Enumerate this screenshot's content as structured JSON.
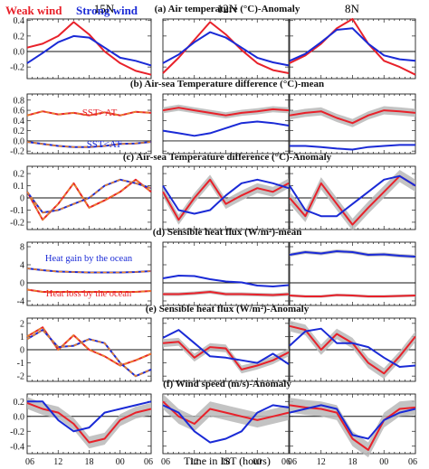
{
  "figure": {
    "legend": [
      {
        "label": "Weak wind",
        "color": "#e8212a"
      },
      {
        "label": "Strong wind",
        "color": "#1a2ad6"
      }
    ],
    "column_titles": [
      "15N",
      "12N",
      "8N"
    ],
    "xlabel": "Time in IST (hours)",
    "xticks": [
      "06",
      "12",
      "18",
      "00",
      "06"
    ]
  },
  "chart_data": [
    {
      "type": "line",
      "row": 0,
      "title": "(a) Air temperature (°C)-Anomaly",
      "ylim": [
        -0.35,
        0.42
      ],
      "yticks": [
        -0.2,
        0.0,
        0.2,
        0.4
      ],
      "ytick_labels": [
        "-0.2",
        "0.0",
        "0.2",
        "0.4"
      ],
      "x_hours": [
        6,
        9,
        12,
        15,
        18,
        21,
        24,
        27,
        30
      ],
      "zero_line": true,
      "dashed": false,
      "panels": [
        {
          "column": "15N",
          "series": [
            {
              "name": "Weak wind",
              "values": [
                0.05,
                0.1,
                0.2,
                0.38,
                0.22,
                0.0,
                -0.15,
                -0.25,
                -0.3
              ],
              "band": 0.0
            },
            {
              "name": "Strong wind",
              "values": [
                -0.15,
                -0.02,
                0.12,
                0.2,
                0.18,
                0.05,
                -0.08,
                -0.12,
                -0.18
              ]
            }
          ]
        },
        {
          "column": "12N",
          "series": [
            {
              "name": "Weak wind",
              "values": [
                -0.28,
                -0.08,
                0.15,
                0.38,
                0.22,
                0.02,
                -0.15,
                -0.24,
                -0.28
              ],
              "band": 0.0
            },
            {
              "name": "Strong wind",
              "values": [
                -0.15,
                -0.04,
                0.12,
                0.25,
                0.18,
                0.05,
                -0.08,
                -0.14,
                -0.18
              ]
            }
          ]
        },
        {
          "column": "8N",
          "series": [
            {
              "name": "Weak wind",
              "values": [
                -0.15,
                -0.05,
                0.1,
                0.3,
                0.42,
                0.1,
                -0.12,
                -0.2,
                -0.3
              ],
              "band": 0.0
            },
            {
              "name": "Strong wind",
              "values": [
                -0.12,
                -0.03,
                0.12,
                0.28,
                0.3,
                0.1,
                -0.05,
                -0.1,
                -0.12
              ]
            }
          ]
        }
      ]
    },
    {
      "type": "line",
      "row": 1,
      "title": "(b) Air-sea Temperature difference (°C)-mean",
      "ylim": [
        -0.25,
        0.92
      ],
      "yticks": [
        -0.2,
        0.0,
        0.2,
        0.4,
        0.6,
        0.8
      ],
      "ytick_labels": [
        "-0.2",
        "0.0",
        "0.2",
        "0.4",
        "0.6",
        "0.8"
      ],
      "x_hours": [
        6,
        9,
        12,
        15,
        18,
        21,
        24,
        27,
        30
      ],
      "zero_line": true,
      "dashed": true,
      "annotations": [
        {
          "text": "SST>AT",
          "color": "#e8212a"
        },
        {
          "text": "SST<AT",
          "color": "#1a2ad6"
        }
      ],
      "panels": [
        {
          "column": "15N",
          "series": [
            {
              "name": "Weak wind",
              "values": [
                0.5,
                0.58,
                0.52,
                0.55,
                0.5,
                0.56,
                0.5,
                0.57,
                0.55
              ],
              "band": 0.0
            },
            {
              "name": "Strong wind",
              "values": [
                -0.02,
                -0.06,
                -0.1,
                -0.12,
                -0.12,
                -0.1,
                -0.06,
                -0.05,
                -0.02
              ]
            }
          ]
        },
        {
          "column": "12N",
          "series": [
            {
              "name": "Weak wind",
              "values": [
                0.6,
                0.65,
                0.6,
                0.55,
                0.5,
                0.55,
                0.58,
                0.62,
                0.6
              ],
              "band": 0.06
            },
            {
              "name": "Strong wind",
              "values": [
                0.2,
                0.15,
                0.1,
                0.15,
                0.25,
                0.35,
                0.38,
                0.35,
                0.3
              ]
            }
          ]
        },
        {
          "column": "8N",
          "series": [
            {
              "name": "Weak wind",
              "values": [
                0.5,
                0.55,
                0.58,
                0.45,
                0.35,
                0.5,
                0.6,
                0.58,
                0.55
              ],
              "band": 0.08
            },
            {
              "name": "Strong wind",
              "values": [
                -0.1,
                -0.1,
                -0.12,
                -0.15,
                -0.17,
                -0.12,
                -0.1,
                -0.08,
                -0.08
              ]
            }
          ]
        }
      ]
    },
    {
      "type": "line",
      "row": 2,
      "title": "(c) Air-sea Temperature difference (°C)-Anomaly",
      "ylim": [
        -0.26,
        0.26
      ],
      "yticks": [
        -0.2,
        -0.1,
        0.0,
        0.1,
        0.2
      ],
      "ytick_labels": [
        "-0.2",
        "-0.1",
        "0",
        "0.1",
        "0.2"
      ],
      "x_hours": [
        6,
        9,
        12,
        15,
        18,
        21,
        24,
        27,
        30
      ],
      "zero_line": true,
      "dashed": true,
      "panels": [
        {
          "column": "15N",
          "series": [
            {
              "name": "Weak wind",
              "values": [
                0.05,
                -0.18,
                -0.05,
                0.12,
                -0.08,
                -0.02,
                0.05,
                0.15,
                0.05
              ],
              "band": 0.0
            },
            {
              "name": "Strong wind",
              "values": [
                0.05,
                -0.12,
                -0.1,
                -0.05,
                0.0,
                0.1,
                0.15,
                0.12,
                0.08
              ]
            }
          ]
        },
        {
          "column": "12N",
          "series": [
            {
              "name": "Weak wind",
              "values": [
                0.05,
                -0.18,
                0.0,
                0.15,
                -0.05,
                0.02,
                0.08,
                0.05,
                0.12
              ],
              "band": 0.04
            },
            {
              "name": "Strong wind",
              "values": [
                0.1,
                -0.1,
                -0.13,
                -0.1,
                0.02,
                0.12,
                0.15,
                0.12,
                0.08
              ]
            }
          ]
        },
        {
          "column": "8N",
          "series": [
            {
              "name": "Weak wind",
              "values": [
                0.0,
                -0.15,
                0.12,
                -0.05,
                -0.22,
                -0.08,
                0.05,
                0.18,
                0.1
              ],
              "band": 0.05
            },
            {
              "name": "Strong wind",
              "values": [
                0.1,
                -0.1,
                -0.15,
                -0.15,
                -0.05,
                0.05,
                0.15,
                0.18,
                0.1
              ]
            }
          ]
        }
      ]
    },
    {
      "type": "line",
      "row": 3,
      "title": "(d) Sensible heat flux (W/m²)-mean",
      "ylim": [
        -5,
        9
      ],
      "yticks": [
        -4,
        0,
        4,
        8
      ],
      "ytick_labels": [
        "-4",
        "0",
        "4",
        "8"
      ],
      "x_hours": [
        6,
        9,
        12,
        15,
        18,
        21,
        24,
        27,
        30
      ],
      "zero_line": true,
      "dashed": true,
      "annotations": [
        {
          "text": "Heat gain by the ocean",
          "color": "#1a2ad6"
        },
        {
          "text": "Heat loss by the ocean",
          "color": "#e8212a"
        }
      ],
      "panels": [
        {
          "column": "15N",
          "series": [
            {
              "name": "Weak wind",
              "values": [
                -1.5,
                -2.0,
                -2.0,
                -2.0,
                -2.0,
                -2.0,
                -2.0,
                -2.0,
                -1.8
              ],
              "band": 0.0
            },
            {
              "name": "Strong wind",
              "values": [
                3.2,
                2.8,
                2.5,
                2.4,
                2.3,
                2.3,
                2.3,
                2.4,
                2.6
              ]
            }
          ]
        },
        {
          "column": "12N",
          "series": [
            {
              "name": "Weak wind",
              "values": [
                -2.5,
                -2.5,
                -2.3,
                -2.0,
                -2.5,
                -2.5,
                -2.6,
                -2.7,
                -2.5
              ],
              "band": 0.4
            },
            {
              "name": "Strong wind",
              "values": [
                1.0,
                1.6,
                1.5,
                0.8,
                0.3,
                0.1,
                -0.6,
                -0.8,
                -0.5
              ]
            }
          ]
        },
        {
          "column": "8N",
          "series": [
            {
              "name": "Weak wind",
              "values": [
                -2.8,
                -3.0,
                -3.0,
                -2.7,
                -2.8,
                -3.0,
                -3.0,
                -2.9,
                -2.8
              ],
              "band": 0.3
            },
            {
              "name": "Strong wind",
              "values": [
                6.2,
                6.8,
                6.5,
                7.0,
                6.8,
                6.2,
                6.3,
                6.0,
                5.8
              ],
              "band": 0.4
            }
          ]
        }
      ]
    },
    {
      "type": "line",
      "row": 4,
      "title": "(e) Sensible heat flux (W/m²)-Anomaly",
      "ylim": [
        -2.4,
        2.4
      ],
      "yticks": [
        -2,
        -1,
        0,
        1,
        2
      ],
      "ytick_labels": [
        "-2",
        "-1",
        "0",
        "1",
        "2"
      ],
      "x_hours": [
        6,
        9,
        12,
        15,
        18,
        21,
        24,
        27,
        30
      ],
      "zero_line": true,
      "dashed": true,
      "panels": [
        {
          "column": "15N",
          "series": [
            {
              "name": "Weak wind",
              "values": [
                1.0,
                1.7,
                0.0,
                1.1,
                0.0,
                -0.5,
                -1.2,
                -0.8,
                -0.3
              ],
              "band": 0.0
            },
            {
              "name": "Strong wind",
              "values": [
                0.8,
                1.5,
                0.2,
                0.3,
                0.8,
                0.5,
                -1.0,
                -2.0,
                -1.5
              ]
            }
          ]
        },
        {
          "column": "12N",
          "series": [
            {
              "name": "Weak wind",
              "values": [
                0.5,
                0.6,
                -0.6,
                0.2,
                0.1,
                -1.5,
                -1.2,
                -0.8,
                -0.2
              ],
              "band": 0.3
            },
            {
              "name": "Strong wind",
              "values": [
                0.9,
                1.5,
                0.5,
                -0.5,
                -0.6,
                -0.8,
                -1.0,
                -0.3,
                -1.1
              ]
            }
          ]
        },
        {
          "column": "8N",
          "series": [
            {
              "name": "Weak wind",
              "values": [
                1.8,
                1.5,
                0.0,
                1.2,
                0.5,
                -1.0,
                -1.8,
                -0.5,
                1.0
              ],
              "band": 0.4
            },
            {
              "name": "Strong wind",
              "values": [
                0.3,
                1.4,
                1.6,
                0.5,
                0.5,
                0.2,
                -0.6,
                -1.3,
                -1.2
              ]
            }
          ]
        }
      ]
    },
    {
      "type": "line",
      "row": 5,
      "title": "(f) Wind speed (m/s)-Anomaly",
      "ylim": [
        -0.5,
        0.3
      ],
      "yticks": [
        -0.4,
        -0.2,
        0.0,
        0.2
      ],
      "ytick_labels": [
        "-0.4",
        "-0.2",
        "0.0",
        "0.2"
      ],
      "x_hours": [
        6,
        9,
        12,
        15,
        18,
        21,
        24,
        27,
        30
      ],
      "zero_line": true,
      "dashed": false,
      "panels": [
        {
          "column": "15N",
          "series": [
            {
              "name": "Weak wind",
              "values": [
                0.18,
                0.1,
                0.05,
                -0.1,
                -0.35,
                -0.3,
                -0.05,
                0.05,
                0.1
              ],
              "band": 0.08
            },
            {
              "name": "Strong wind",
              "values": [
                0.2,
                0.2,
                -0.05,
                -0.2,
                -0.15,
                0.05,
                0.1,
                0.15,
                0.2
              ]
            }
          ]
        },
        {
          "column": "12N",
          "series": [
            {
              "name": "Weak wind",
              "values": [
                0.2,
                0.0,
                -0.1,
                0.1,
                0.05,
                0.0,
                -0.05,
                0.0,
                0.05
              ],
              "band": 0.1
            },
            {
              "name": "Strong wind",
              "values": [
                0.15,
                0.05,
                -0.2,
                -0.35,
                -0.3,
                -0.2,
                0.05,
                0.15,
                0.12
              ]
            }
          ]
        },
        {
          "column": "8N",
          "series": [
            {
              "name": "Weak wind",
              "values": [
                0.15,
                0.12,
                0.1,
                0.05,
                -0.3,
                -0.45,
                -0.05,
                0.1,
                0.12
              ],
              "band": 0.1
            },
            {
              "name": "Strong wind",
              "values": [
                0.05,
                0.1,
                0.15,
                0.1,
                -0.25,
                -0.3,
                -0.05,
                0.05,
                0.1
              ]
            }
          ]
        }
      ]
    }
  ]
}
